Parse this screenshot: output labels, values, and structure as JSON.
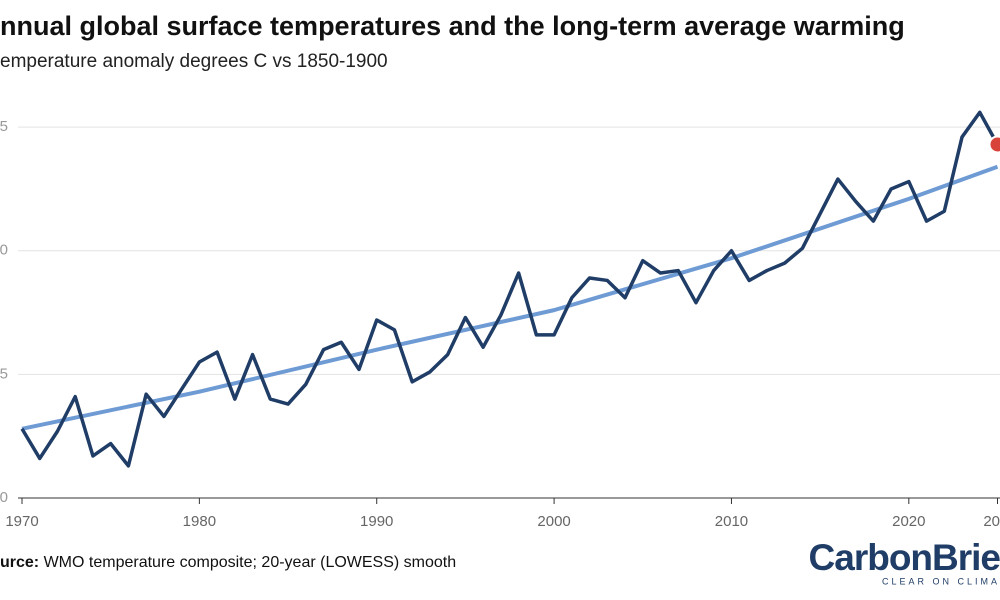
{
  "chart_data": {
    "type": "line",
    "title": "nnual global surface temperatures and the long-term average warming",
    "subtitle": "emperature anomaly degrees C vs 1850-1900",
    "source_label": "urce:",
    "source": " WMO temperature composite; 20-year (LOWESS) smooth",
    "x": [
      1970,
      1971,
      1972,
      1973,
      1974,
      1975,
      1976,
      1977,
      1978,
      1979,
      1980,
      1981,
      1982,
      1983,
      1984,
      1985,
      1986,
      1987,
      1988,
      1989,
      1990,
      1991,
      1992,
      1993,
      1994,
      1995,
      1996,
      1997,
      1998,
      1999,
      2000,
      2001,
      2002,
      2003,
      2004,
      2005,
      2006,
      2007,
      2008,
      2009,
      2010,
      2011,
      2012,
      2013,
      2014,
      2015,
      2016,
      2017,
      2018,
      2019,
      2020,
      2021,
      2022,
      2023,
      2024,
      2025
    ],
    "series": [
      {
        "color": "#1f3d66",
        "values": [
          0.28,
          0.16,
          0.27,
          0.41,
          0.17,
          0.22,
          0.13,
          0.42,
          0.33,
          0.44,
          0.55,
          0.59,
          0.4,
          0.58,
          0.4,
          0.38,
          0.46,
          0.6,
          0.63,
          0.52,
          0.72,
          0.68,
          0.47,
          0.51,
          0.58,
          0.73,
          0.61,
          0.74,
          0.91,
          0.66,
          0.66,
          0.81,
          0.89,
          0.88,
          0.81,
          0.96,
          0.91,
          0.92,
          0.79,
          0.92,
          1.0,
          0.88,
          0.92,
          0.95,
          1.01,
          1.15,
          1.29,
          1.2,
          1.12,
          1.25,
          1.28,
          1.12,
          1.16,
          1.46,
          1.56,
          1.43
        ]
      },
      {
        "color": "#6f9bd4",
        "x": [
          1970,
          1980,
          1990,
          2000,
          2010,
          2020,
          2025
        ],
        "values": [
          0.28,
          0.43,
          0.6,
          0.76,
          0.97,
          1.21,
          1.34
        ]
      }
    ],
    "highlight_color": "#d9443a",
    "xlim": [
      1970,
      2025
    ],
    "xticks": [
      1970,
      1980,
      1990,
      2000,
      2010,
      2020,
      {
        "value": 2025,
        "label": "20"
      }
    ],
    "ylim": [
      0,
      1.62
    ],
    "yticks": [
      0,
      {
        "value": 0.5,
        "label": "5"
      },
      {
        "value": 1.0,
        "label": "0"
      },
      {
        "value": 1.5,
        "label": "5"
      }
    ],
    "grid": true
  },
  "logo": {
    "name": "CarbonBrie",
    "tagline": "CLEAR ON CLIMA"
  }
}
